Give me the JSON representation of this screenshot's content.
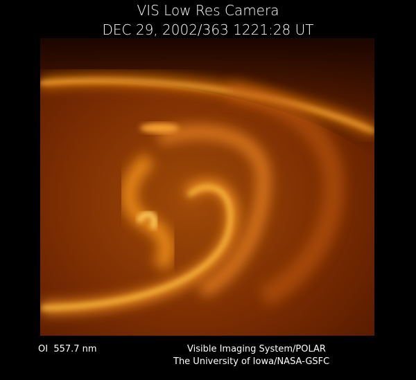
{
  "header": {
    "title": "VIS Low Res Camera",
    "timestamp": "DEC 29, 2002/363 1221:28 UT"
  },
  "footer": {
    "filter": "OI  557.7 nm",
    "instrument": "Visible Imaging System/POLAR",
    "credit": "The University of Iowa/NASA-GSFC"
  }
}
